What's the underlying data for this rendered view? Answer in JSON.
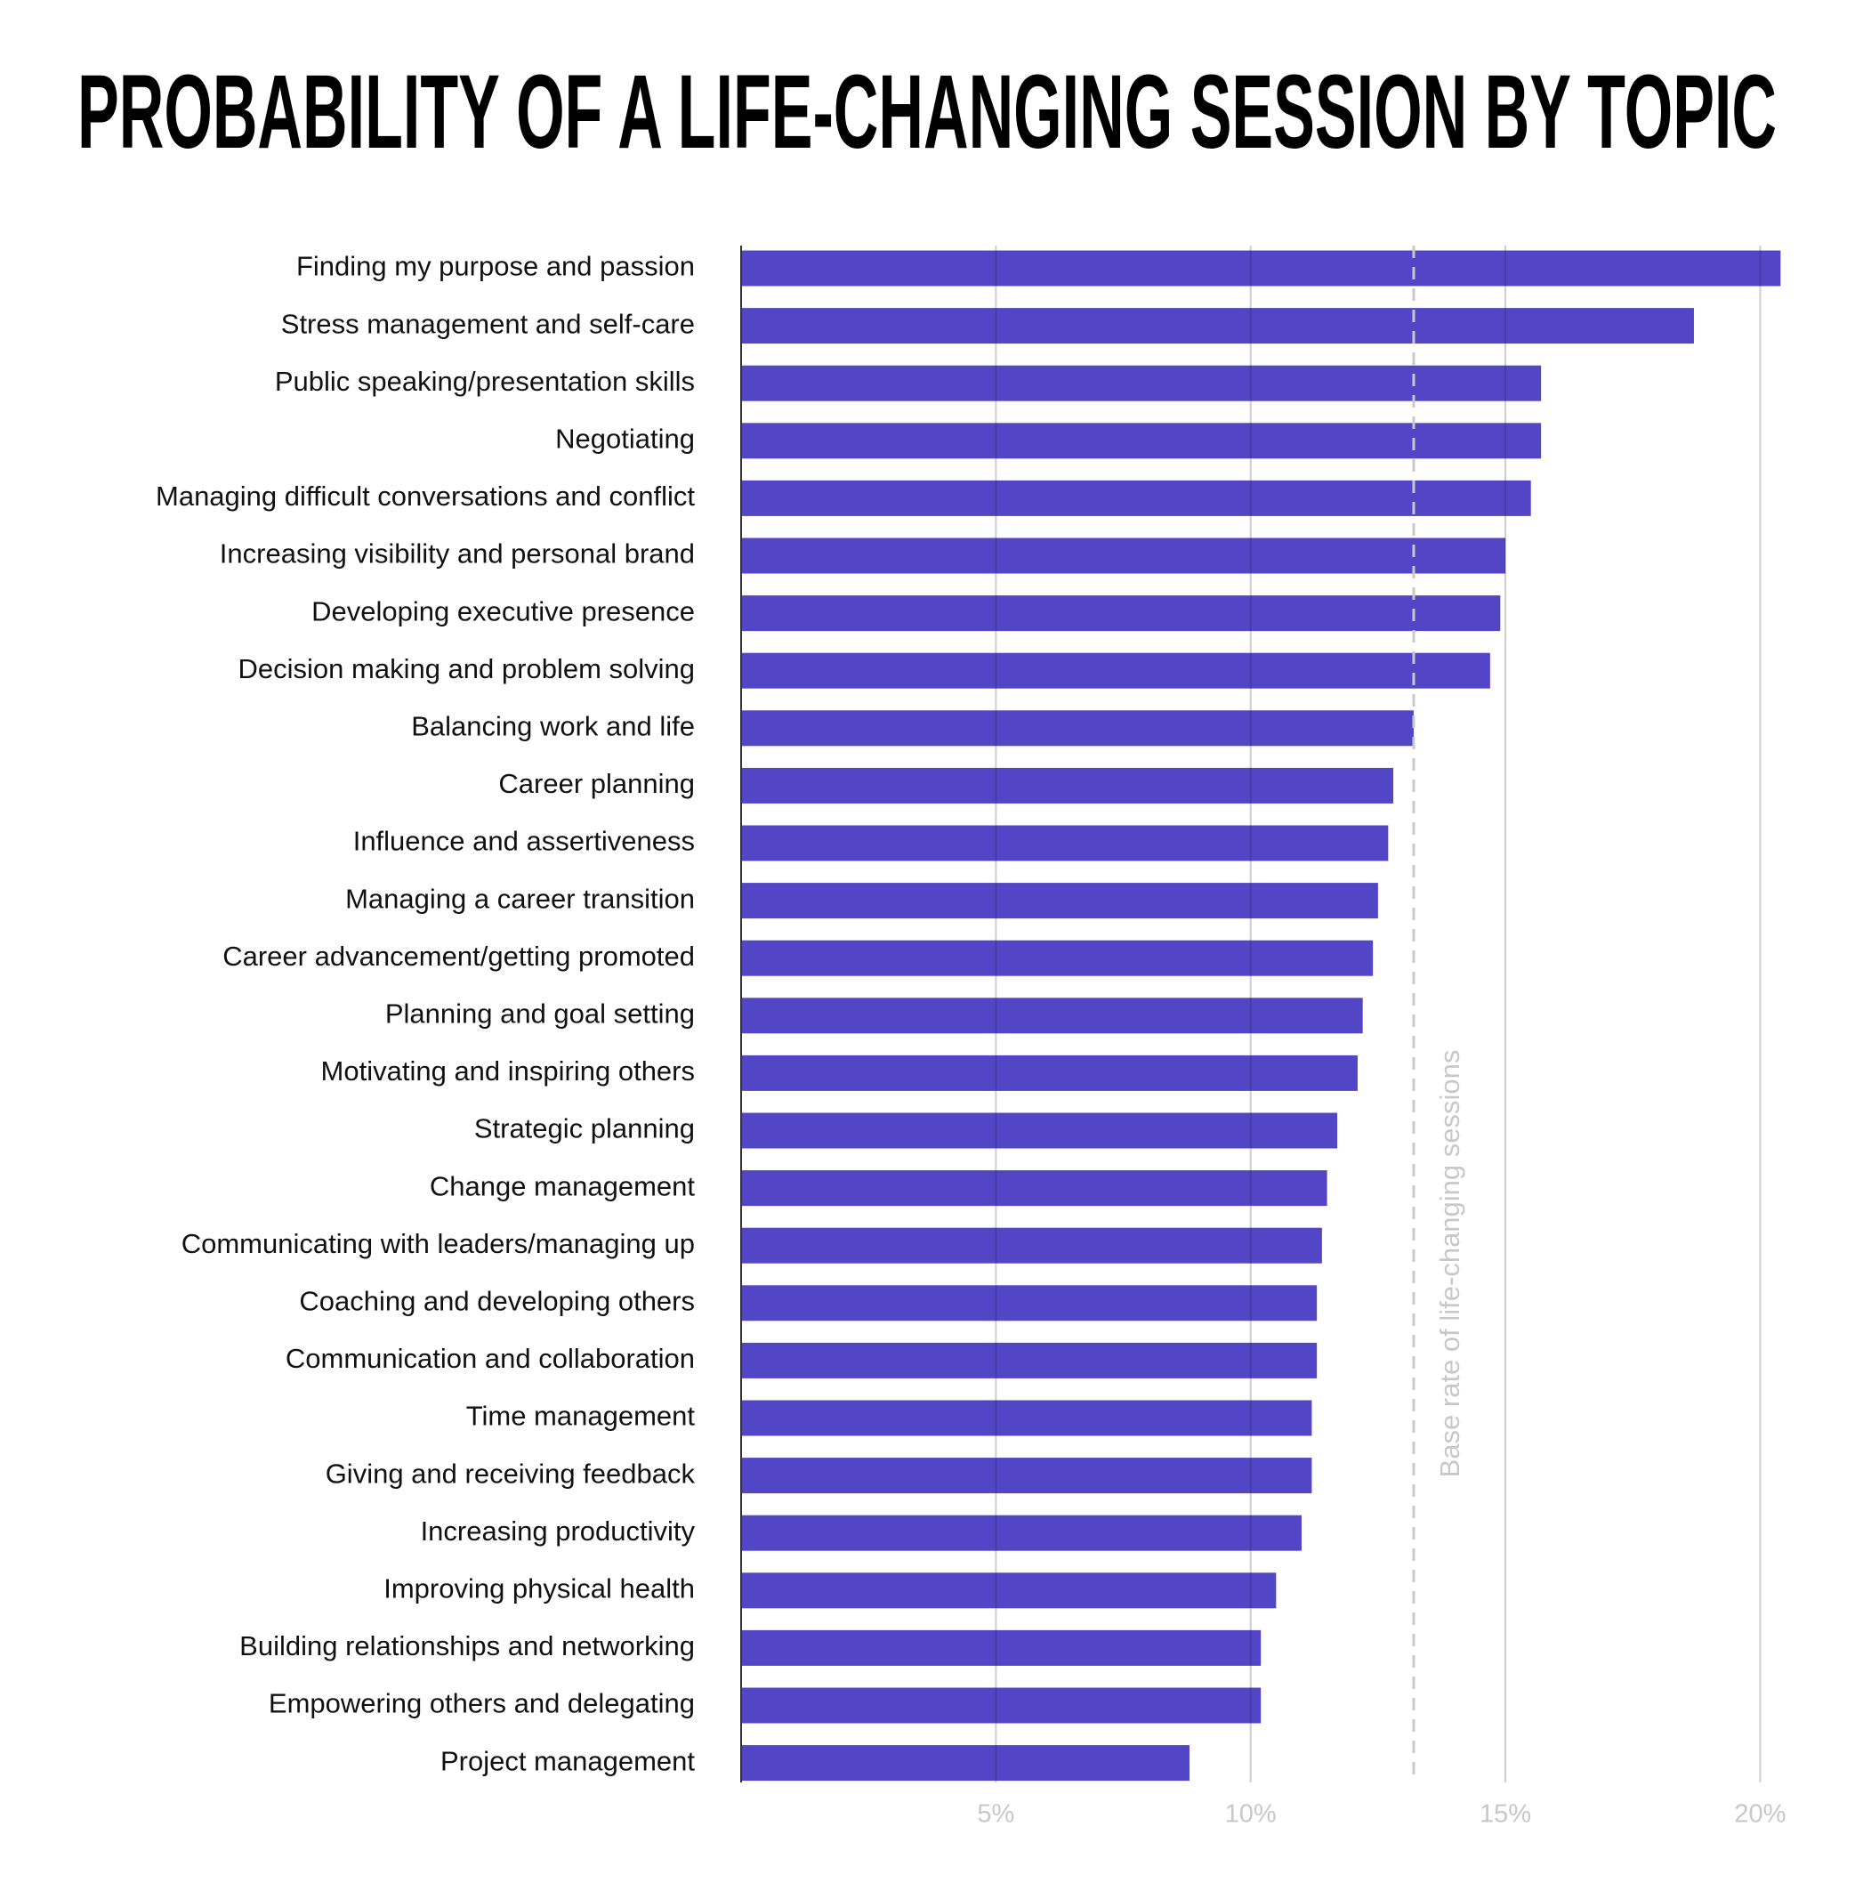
{
  "chart_data": {
    "type": "bar",
    "orientation": "horizontal",
    "title": "PROBABILITY OF A LIFE-CHANGING SESSION BY TOPIC",
    "categories": [
      "Finding my purpose and passion",
      "Stress management and self-care",
      "Public speaking/presentation skills",
      "Negotiating",
      "Managing difficult conversations and conflict",
      "Increasing visibility and personal brand",
      "Developing executive presence",
      "Decision making and problem solving",
      "Balancing work and life",
      "Career planning",
      "Influence and assertiveness",
      "Managing a career transition",
      "Career advancement/getting promoted",
      "Planning and goal setting",
      "Motivating and inspiring others",
      "Strategic planning",
      "Change management",
      "Communicating with leaders/managing up",
      "Coaching and developing others",
      "Communication and collaboration",
      "Time management",
      "Giving and receiving feedback",
      "Increasing productivity",
      "Improving physical health",
      "Building relationships and networking",
      "Empowering others and delegating",
      "Project management"
    ],
    "values": [
      20.4,
      18.7,
      15.7,
      15.7,
      15.5,
      15.0,
      14.9,
      14.7,
      13.2,
      12.8,
      12.7,
      12.5,
      12.4,
      12.2,
      12.1,
      11.7,
      11.5,
      11.4,
      11.3,
      11.3,
      11.2,
      11.2,
      11.0,
      10.5,
      10.2,
      10.2,
      8.8
    ],
    "color": "#5246c6",
    "xlim": [
      0,
      20.5
    ],
    "xticks": [
      {
        "value": 5,
        "label": "5%"
      },
      {
        "value": 10,
        "label": "10%"
      },
      {
        "value": 15,
        "label": "15%"
      },
      {
        "value": 20,
        "label": "20%"
      }
    ],
    "grid": true,
    "reference_line": {
      "value": 13.2,
      "label": "Base rate of life-changing sessions"
    }
  }
}
